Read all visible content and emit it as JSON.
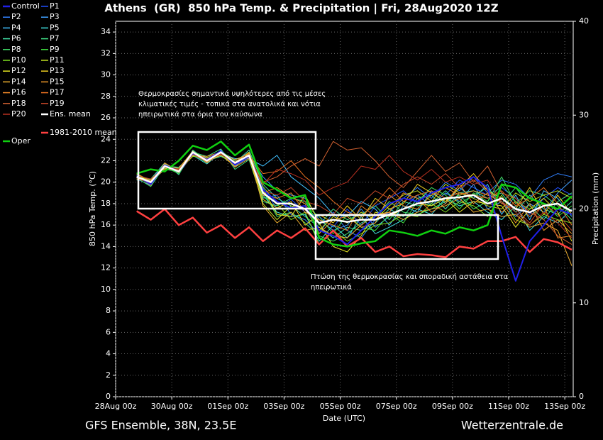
{
  "chart_data": {
    "type": "line",
    "title": "Athens  (GR)  850 hPa Temp. & Precipitation | Fri, 28Aug2020 12Z",
    "y_label": "850 hPa Temp. (°C)",
    "y2_label": "Precipitation (mm)",
    "x_label": "Date (UTC)",
    "footer_left": "GFS Ensemble, 38N, 23.5E",
    "footer_right": "Wetterzentrale.de",
    "annotations": [
      {
        "lines": [
          "Θερμοκρασίες σημαντικά υψηλότερες από τις μέσες",
          "κλιματικές τιμές - τοπικά στα ανατολικά και νότια",
          "ηπειρωτικά στα όρια του καύσωνα"
        ]
      },
      {
        "lines": [
          "Πτώση της θερμοκρασίας και σποραδική αστάθεια στα",
          "ηπειρωτικά"
        ]
      }
    ],
    "grid": true,
    "xlim": [
      0,
      16.3
    ],
    "xticks": [
      {
        "value": 0,
        "label": "28Aug 00z"
      },
      {
        "value": 2,
        "label": "30Aug 00z"
      },
      {
        "value": 4,
        "label": "01Sep 00z"
      },
      {
        "value": 6,
        "label": "03Sep 00z"
      },
      {
        "value": 8,
        "label": "05Sep 00z"
      },
      {
        "value": 10,
        "label": "07Sep 00z"
      },
      {
        "value": 12,
        "label": "09Sep 00z"
      },
      {
        "value": 14,
        "label": "11Sep 00z"
      },
      {
        "value": 16,
        "label": "13Sep 00z"
      }
    ],
    "ylim": [
      0,
      35
    ],
    "yticks": [
      0,
      2,
      4,
      6,
      8,
      10,
      12,
      14,
      16,
      18,
      20,
      22,
      24,
      26,
      28,
      30,
      32,
      34
    ],
    "y2lim": [
      0,
      40
    ],
    "y2ticks": [
      0,
      10,
      20,
      30,
      40
    ],
    "x": [
      0.75,
      1.25,
      1.75,
      2.25,
      2.75,
      3.25,
      3.75,
      4.25,
      4.75,
      5.25,
      5.75,
      6.25,
      6.75,
      7.25,
      7.75,
      8.25,
      8.75,
      9.25,
      9.75,
      10.25,
      10.75,
      11.25,
      11.75,
      12.25,
      12.75,
      13.25,
      13.75,
      14.25,
      14.75,
      15.25,
      15.75,
      16.25
    ],
    "series": [
      {
        "name": "Control",
        "color": "#2020e8",
        "values": [
          20.6,
          19.8,
          21.6,
          21.0,
          22.7,
          22.1,
          22.9,
          21.6,
          22.4,
          19.3,
          18.2,
          17.6,
          17.8,
          15.5,
          15.0,
          14.2,
          15.5,
          16.8,
          18.0,
          18.5,
          18.2,
          19.0,
          19.5,
          19.8,
          20.5,
          19.5,
          15.0,
          10.8,
          14.5,
          16.0,
          17.5,
          17.0
        ]
      },
      {
        "name": "P1",
        "color": "#2050ff",
        "values": [
          20.4,
          19.9,
          21.4,
          21.2,
          22.9,
          21.8,
          22.6,
          21.9,
          22.8,
          19.5,
          17.5,
          18.4,
          17.2,
          16.8,
          15.8,
          17.5,
          16.0,
          17.8,
          18.5,
          19.2,
          18.0,
          19.5,
          18.8,
          20.2,
          19.5,
          18.8,
          19.5,
          18.5,
          17.0,
          18.5,
          19.5,
          18.8
        ]
      },
      {
        "name": "P2",
        "color": "#3080ff",
        "values": [
          20.7,
          20.2,
          21.7,
          20.8,
          22.6,
          22.2,
          22.5,
          21.5,
          22.3,
          18.5,
          18.8,
          17.0,
          16.5,
          15.2,
          17.2,
          15.5,
          14.8,
          16.5,
          17.2,
          18.5,
          19.5,
          18.5,
          20.0,
          19.2,
          20.5,
          19.0,
          20.2,
          19.8,
          18.5,
          20.2,
          20.8,
          20.5
        ]
      },
      {
        "name": "P3",
        "color": "#40a0ff",
        "values": [
          20.3,
          19.7,
          21.5,
          21.1,
          22.9,
          21.9,
          23.0,
          21.7,
          22.6,
          20.5,
          19.2,
          18.8,
          18.5,
          16.5,
          15.5,
          16.0,
          17.5,
          15.8,
          16.8,
          17.5,
          18.8,
          17.8,
          19.0,
          18.2,
          19.8,
          17.5,
          18.2,
          16.8,
          18.0,
          17.2,
          19.0,
          20.2
        ]
      },
      {
        "name": "P4",
        "color": "#40c0ff",
        "values": [
          20.6,
          20.1,
          21.3,
          20.9,
          22.7,
          22.3,
          22.7,
          22.2,
          22.2,
          21.5,
          22.5,
          20.5,
          19.5,
          18.5,
          17.0,
          16.8,
          18.2,
          17.5,
          16.0,
          17.8,
          17.2,
          19.2,
          18.0,
          19.5,
          18.5,
          19.8,
          17.0,
          18.8,
          16.5,
          19.2,
          18.5,
          16.8
        ]
      },
      {
        "name": "P5",
        "color": "#40e0e0",
        "values": [
          20.5,
          19.8,
          21.6,
          21.3,
          22.5,
          21.7,
          22.8,
          21.4,
          22.7,
          18.8,
          17.2,
          16.8,
          17.0,
          14.5,
          16.0,
          14.8,
          16.8,
          15.2,
          15.8,
          16.5,
          17.5,
          17.0,
          18.5,
          17.8,
          18.2,
          17.2,
          16.5,
          17.8,
          15.5,
          16.8,
          16.2,
          17.5
        ]
      },
      {
        "name": "P6",
        "color": "#40e0a8",
        "values": [
          20.2,
          20.3,
          21.8,
          20.7,
          23.0,
          22.0,
          22.4,
          21.8,
          23.0,
          19.8,
          18.5,
          17.8,
          16.8,
          15.8,
          14.8,
          15.8,
          15.5,
          16.2,
          17.5,
          16.8,
          18.5,
          18.8,
          17.5,
          19.0,
          19.2,
          18.5,
          19.0,
          17.2,
          18.8,
          17.5,
          17.0,
          18.2
        ]
      },
      {
        "name": "P7",
        "color": "#40e088",
        "values": [
          20.8,
          20.0,
          21.2,
          21.0,
          22.8,
          22.4,
          23.1,
          21.2,
          22.1,
          18.2,
          17.8,
          18.5,
          18.2,
          16.0,
          17.5,
          16.5,
          17.0,
          17.8,
          16.5,
          18.2,
          17.8,
          18.0,
          19.2,
          18.0,
          18.8,
          19.5,
          18.0,
          19.5,
          17.8,
          16.5,
          18.2,
          19.0
        ]
      },
      {
        "name": "P8",
        "color": "#40e068",
        "values": [
          20.4,
          19.6,
          21.5,
          21.4,
          22.6,
          21.8,
          22.9,
          22.0,
          22.4,
          19.2,
          16.8,
          17.2,
          16.2,
          15.0,
          14.5,
          15.2,
          16.2,
          16.8,
          18.2,
          17.2,
          17.0,
          17.5,
          18.2,
          18.8,
          17.5,
          18.2,
          20.5,
          18.0,
          19.2,
          18.8,
          17.8,
          16.5
        ]
      },
      {
        "name": "P9",
        "color": "#40e040",
        "values": [
          20.6,
          20.2,
          21.4,
          20.8,
          22.9,
          22.1,
          22.6,
          21.6,
          22.6,
          18.6,
          18.2,
          17.5,
          17.8,
          16.8,
          15.2,
          17.0,
          15.8,
          15.5,
          17.0,
          16.2,
          18.2,
          19.5,
          18.8,
          17.5,
          19.0,
          18.2,
          19.8,
          18.2,
          17.5,
          18.0,
          16.8,
          17.8
        ]
      },
      {
        "name": "P10",
        "color": "#80e020",
        "values": [
          20.5,
          19.9,
          21.6,
          21.1,
          22.4,
          22.3,
          22.7,
          21.9,
          22.5,
          19.6,
          18.0,
          16.5,
          17.2,
          14.2,
          15.5,
          14.5,
          15.2,
          16.0,
          16.2,
          17.0,
          16.8,
          18.0,
          17.2,
          18.2,
          17.8,
          16.8,
          18.8,
          16.5,
          16.0,
          17.0,
          16.5,
          16.2
        ]
      },
      {
        "name": "P11",
        "color": "#c0e020",
        "values": [
          20.3,
          20.1,
          21.3,
          21.2,
          22.7,
          21.9,
          22.8,
          21.7,
          22.3,
          18.0,
          16.5,
          17.8,
          17.5,
          15.5,
          16.8,
          16.2,
          17.2,
          16.5,
          17.8,
          18.8,
          19.2,
          18.2,
          19.8,
          19.0,
          18.5,
          17.8,
          17.5,
          19.0,
          18.2,
          18.8,
          19.2,
          18.5
        ]
      },
      {
        "name": "P12",
        "color": "#e8e820",
        "values": [
          20.7,
          20.0,
          21.7,
          20.9,
          22.8,
          22.2,
          22.9,
          21.8,
          22.8,
          19.4,
          17.0,
          16.8,
          18.8,
          16.2,
          14.0,
          13.5,
          15.0,
          17.2,
          16.8,
          17.5,
          18.0,
          17.8,
          18.5,
          17.2,
          18.2,
          18.0,
          17.8,
          15.8,
          17.5,
          18.5,
          17.2,
          14.5
        ]
      },
      {
        "name": "P13",
        "color": "#f0d020",
        "values": [
          20.5,
          19.8,
          21.5,
          21.0,
          22.6,
          22.0,
          22.5,
          21.5,
          22.4,
          18.4,
          17.6,
          18.2,
          16.0,
          17.0,
          16.2,
          17.8,
          16.5,
          18.5,
          17.5,
          18.0,
          19.8,
          19.0,
          18.2,
          19.5,
          20.8,
          19.2,
          18.5,
          17.5,
          19.5,
          17.0,
          18.8,
          17.0
        ]
      },
      {
        "name": "P14",
        "color": "#f0b030",
        "values": [
          20.4,
          20.2,
          21.4,
          21.3,
          22.9,
          21.8,
          22.7,
          22.1,
          22.6,
          17.8,
          16.2,
          17.2,
          15.5,
          15.8,
          15.0,
          14.8,
          16.0,
          17.0,
          17.2,
          16.5,
          17.2,
          17.5,
          17.8,
          18.5,
          17.2,
          17.5,
          16.8,
          17.0,
          15.8,
          16.2,
          15.5,
          12.2
        ]
      },
      {
        "name": "P15",
        "color": "#f09828",
        "values": [
          20.6,
          19.7,
          21.8,
          21.0,
          22.5,
          22.4,
          22.8,
          21.4,
          22.2,
          19.0,
          19.5,
          18.6,
          18.0,
          15.2,
          16.5,
          16.8,
          15.8,
          16.2,
          18.8,
          17.8,
          17.5,
          18.8,
          19.5,
          18.8,
          19.2,
          18.8,
          18.2,
          16.2,
          18.0,
          15.5,
          16.5,
          15.2
        ]
      },
      {
        "name": "P16",
        "color": "#f08828",
        "values": [
          20.8,
          20.1,
          21.2,
          21.2,
          22.8,
          22.1,
          22.6,
          21.9,
          22.7,
          18.8,
          18.5,
          19.0,
          17.2,
          16.5,
          16.0,
          15.5,
          17.8,
          16.8,
          17.2,
          19.0,
          18.5,
          17.2,
          18.0,
          19.8,
          18.0,
          19.0,
          17.2,
          18.2,
          16.8,
          17.8,
          14.8,
          15.0
        ]
      },
      {
        "name": "P17",
        "color": "#e87020",
        "values": [
          20.3,
          20.0,
          21.6,
          20.9,
          22.7,
          22.2,
          22.9,
          21.6,
          22.5,
          20.8,
          21.0,
          22.0,
          20.5,
          19.5,
          18.2,
          17.2,
          16.8,
          18.0,
          19.5,
          18.2,
          18.8,
          19.2,
          18.5,
          19.0,
          18.8,
          18.5,
          19.2,
          17.8,
          18.5,
          19.5,
          18.0,
          16.0
        ]
      },
      {
        "name": "P18",
        "color": "#d06030",
        "values": [
          20.5,
          19.9,
          21.5,
          21.1,
          22.6,
          21.9,
          22.7,
          21.8,
          22.3,
          20.0,
          20.5,
          21.5,
          22.2,
          21.5,
          23.8,
          23.0,
          23.2,
          22.0,
          20.5,
          19.5,
          21.0,
          22.5,
          21.0,
          21.8,
          20.0,
          21.5,
          19.0,
          18.5,
          17.2,
          16.5,
          15.0,
          14.2
        ]
      },
      {
        "name": "P19",
        "color": "#c84828",
        "values": [
          20.6,
          20.3,
          21.4,
          21.0,
          22.8,
          22.0,
          22.8,
          21.7,
          22.6,
          19.2,
          18.8,
          19.5,
          18.2,
          17.8,
          17.0,
          18.5,
          18.0,
          19.2,
          18.5,
          19.8,
          20.5,
          19.8,
          20.8,
          19.5,
          20.2,
          19.2,
          18.0,
          17.5,
          16.2,
          18.0,
          17.0,
          15.5
        ]
      },
      {
        "name": "P20",
        "color": "#b83020",
        "values": [
          20.4,
          20.0,
          21.5,
          21.2,
          22.7,
          22.1,
          22.6,
          21.9,
          22.4,
          19.8,
          21.2,
          20.8,
          20.2,
          18.8,
          19.5,
          20.0,
          21.5,
          21.2,
          22.5,
          21.0,
          20.2,
          21.2,
          20.0,
          20.5,
          19.8,
          20.2,
          18.2,
          17.2,
          16.0,
          17.2,
          16.2,
          14.8
        ]
      },
      {
        "name": "Ens. mean",
        "color": "#ffffff",
        "values": [
          20.5,
          20.0,
          21.5,
          21.0,
          22.8,
          22.0,
          22.8,
          21.8,
          22.5,
          19.0,
          18.0,
          18.0,
          17.5,
          16.2,
          16.5,
          16.3,
          16.5,
          16.5,
          17.0,
          17.5,
          18.0,
          18.2,
          18.5,
          18.6,
          18.8,
          18.0,
          18.5,
          17.5,
          17.2,
          17.8,
          18.0,
          17.3
        ]
      },
      {
        "name": "Oper",
        "color": "#10d010",
        "values": [
          20.8,
          21.2,
          21.0,
          22.0,
          23.4,
          23.0,
          23.8,
          22.5,
          23.5,
          20.0,
          19.3,
          18.5,
          18.8,
          14.8,
          14.2,
          14.0,
          14.3,
          14.5,
          15.5,
          15.3,
          15.0,
          15.5,
          15.2,
          15.8,
          15.5,
          16.0,
          19.8,
          19.5,
          18.5,
          18.0,
          17.5,
          18.7
        ]
      },
      {
        "name": "1981-2010 mean",
        "color": "#ff4040",
        "values": [
          17.3,
          16.5,
          17.5,
          16.0,
          16.7,
          15.3,
          16.0,
          14.8,
          15.8,
          14.5,
          15.5,
          14.8,
          15.7,
          14.2,
          15.5,
          14.0,
          14.8,
          13.5,
          14.0,
          13.1,
          13.3,
          13.2,
          13.0,
          14.0,
          13.8,
          14.5,
          14.5,
          14.9,
          13.5,
          14.7,
          14.4,
          13.7
        ]
      }
    ]
  }
}
